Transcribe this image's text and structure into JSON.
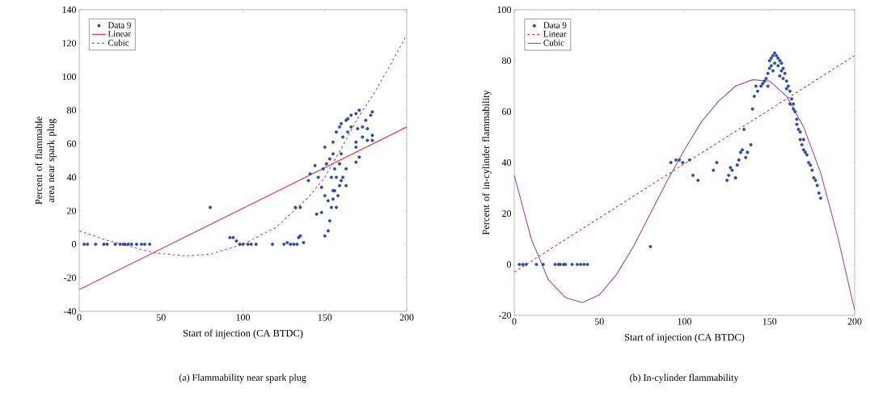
{
  "chart_data": [
    {
      "type": "scatter",
      "xlabel": "Start of injection (CA BTDC)",
      "ylabel": "Percent of flammable area near spark plug",
      "annotations": [
        "(a) Flammability near spark plug"
      ],
      "xlim": [
        0,
        200
      ],
      "ylim": [
        -40,
        140
      ],
      "xticks": [
        0,
        50,
        100,
        150,
        200
      ],
      "yticks": [
        -40,
        -20,
        0,
        20,
        40,
        60,
        80,
        100,
        120,
        140
      ],
      "legend": "top left",
      "grid": false,
      "series": [
        {
          "name": "Data 9",
          "marker": "circle",
          "color": "#2c4ba6",
          "x": [
            3,
            5,
            10,
            15,
            17,
            22,
            25,
            27,
            28,
            30,
            32,
            35,
            38,
            40,
            43,
            80,
            92,
            94,
            96,
            98,
            100,
            103,
            105,
            108,
            118,
            125,
            127,
            129,
            131,
            133,
            134,
            135,
            137,
            132,
            135,
            144,
            140,
            141,
            145,
            148,
            150,
            152,
            153,
            154,
            155,
            156,
            158,
            159,
            161,
            163,
            150,
            151,
            153,
            155,
            155,
            157,
            159,
            160,
            163,
            164,
            166,
            169,
            171,
            170,
            173,
            175,
            176,
            178,
            179,
            179,
            179,
            169,
            171,
            169,
            156,
            159,
            160,
            161,
            164,
            166,
            154,
            157,
            160,
            163,
            155,
            152,
            157,
            150,
            148,
            146,
            149,
            173,
            176,
            169
          ],
          "values": [
            0,
            0,
            0,
            0,
            0,
            0,
            0,
            0,
            0,
            0,
            0,
            0,
            0,
            0,
            0,
            22,
            4,
            4,
            2,
            0,
            0,
            0,
            0,
            0,
            0,
            0,
            1,
            0,
            0,
            0,
            4,
            5,
            1,
            22,
            22,
            47,
            38,
            42,
            18,
            19,
            5,
            8,
            14,
            22,
            27,
            32,
            29,
            35,
            40,
            45,
            58,
            48,
            51,
            54,
            61,
            67,
            70,
            72,
            74,
            75,
            77,
            78,
            80,
            69,
            70,
            74,
            69,
            77,
            79,
            65,
            62,
            58,
            52,
            49,
            45,
            48,
            54,
            64,
            67,
            70,
            40,
            40,
            38,
            35,
            32,
            26,
            22,
            29,
            34,
            40,
            45,
            64,
            62,
            61
          ]
        },
        {
          "name": "Linear",
          "type": "line",
          "line_style": "solid",
          "color": "#e8322c",
          "x": [
            0,
            200
          ],
          "values": [
            -27,
            70
          ]
        },
        {
          "name": "Cubic",
          "type": "line",
          "line_style": "dashed",
          "color": "#b545b5",
          "x": [
            0,
            15,
            30,
            45,
            65,
            80,
            100,
            120,
            140,
            150,
            160,
            170,
            180,
            190,
            200
          ],
          "values": [
            8,
            3,
            -1,
            -5,
            -7,
            -6,
            0,
            10,
            28,
            40,
            57,
            75,
            90,
            107,
            125
          ]
        }
      ]
    },
    {
      "type": "scatter",
      "xlabel": "Start of injection (CA BTDC)",
      "ylabel": "Percent of in-cylinder flammability",
      "annotations": [
        "(b) In-cylinder flammability"
      ],
      "xlim": [
        0,
        200
      ],
      "ylim": [
        -20,
        100
      ],
      "xticks": [
        0,
        50,
        100,
        150,
        200
      ],
      "yticks": [
        -20,
        0,
        20,
        40,
        60,
        80,
        100
      ],
      "legend": "top left",
      "grid": false,
      "series": [
        {
          "name": "Data 9",
          "marker": "circle",
          "color": "#2c4ba6",
          "x": [
            3,
            5,
            7,
            13,
            17,
            24,
            26,
            27,
            29,
            30,
            34,
            37,
            39,
            41,
            43,
            80,
            92,
            95,
            97,
            99,
            103,
            105,
            108,
            117,
            119,
            125,
            126,
            127,
            128,
            130,
            131,
            132,
            133,
            134,
            135,
            136,
            137,
            139,
            140,
            141,
            142,
            143,
            145,
            146,
            147,
            148,
            149,
            150,
            150,
            151,
            152,
            153,
            154,
            155,
            156,
            157,
            158,
            159,
            160,
            161,
            162,
            163,
            164,
            165,
            166,
            167,
            168,
            169,
            170,
            171,
            172,
            173,
            174,
            175,
            176,
            177,
            178,
            179,
            180,
            151,
            153,
            155,
            157,
            152,
            149,
            156,
            158,
            160,
            162,
            164,
            166,
            168,
            170
          ],
          "values": [
            0,
            0,
            0,
            0,
            0,
            0,
            0,
            0,
            0,
            0,
            0,
            0,
            0,
            0,
            0,
            7,
            40,
            41,
            41,
            40,
            41,
            35,
            33,
            37,
            40,
            33,
            35,
            38,
            37,
            34,
            39,
            41,
            44,
            45,
            53,
            42,
            44,
            47,
            61,
            66,
            70,
            68,
            70,
            71,
            72,
            73,
            75,
            77,
            80,
            81,
            82,
            83,
            82,
            81,
            80,
            79,
            77,
            75,
            72,
            70,
            68,
            65,
            63,
            60,
            57,
            53,
            49,
            47,
            45,
            44,
            43,
            40,
            39,
            37,
            34,
            33,
            31,
            28,
            26,
            78,
            79,
            78,
            76,
            76,
            70,
            74,
            73,
            69,
            63,
            61,
            55,
            52,
            49
          ]
        },
        {
          "name": "Linear",
          "type": "line",
          "line_style": "dashed",
          "color": "#e8322c",
          "x": [
            0,
            200
          ],
          "values": [
            -3,
            82
          ]
        },
        {
          "name": "Cubic",
          "type": "line",
          "line_style": "solid",
          "color": "#a845a8",
          "x": [
            0,
            10,
            20,
            30,
            40,
            50,
            60,
            70,
            80,
            90,
            100,
            110,
            120,
            130,
            140,
            150,
            160,
            170,
            180,
            190,
            200
          ],
          "values": [
            35,
            10,
            -6,
            -13,
            -15,
            -12,
            -4,
            7,
            20,
            33,
            45,
            56,
            64,
            70,
            72.5,
            72,
            66,
            54,
            36,
            11,
            -18
          ]
        }
      ]
    }
  ]
}
